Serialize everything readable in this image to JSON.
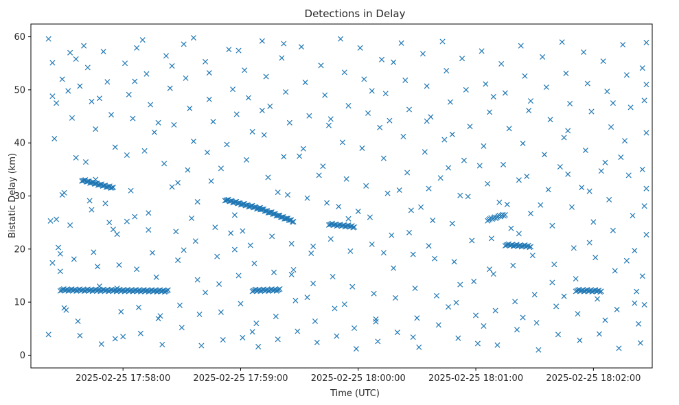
{
  "chart_data": {
    "type": "scatter",
    "title": "Detections in Delay",
    "xlabel": "Time (UTC)",
    "ylabel": "Bistatic Delay (km)",
    "marker": "x",
    "color": "#1f77b4",
    "x_unit": "seconds after 2025-02-25 17:57:00 UTC",
    "xlim": [
      13,
      330
    ],
    "ylim": [
      -2.4,
      62.4
    ],
    "x_ticks": [
      {
        "value": 60,
        "label": "2025-02-25 17:58:00"
      },
      {
        "value": 120,
        "label": "2025-02-25 17:59:00"
      },
      {
        "value": 180,
        "label": "2025-02-25 18:00:00"
      },
      {
        "value": 240,
        "label": "2025-02-25 18:01:00"
      },
      {
        "value": 300,
        "label": "2025-02-25 18:02:00"
      }
    ],
    "y_ticks": [
      {
        "value": 0,
        "label": "0"
      },
      {
        "value": 10,
        "label": "10"
      },
      {
        "value": 20,
        "label": "20"
      },
      {
        "value": 30,
        "label": "30"
      },
      {
        "value": 40,
        "label": "40"
      },
      {
        "value": 50,
        "label": "50"
      },
      {
        "value": 60,
        "label": "60"
      }
    ],
    "tracks": [
      {
        "x": [
          28,
          83
        ],
        "y": [
          12.3,
          12.1
        ]
      },
      {
        "x": [
          112,
          130
        ],
        "y": [
          29.3,
          27.6
        ]
      },
      {
        "x": [
          130,
          147
        ],
        "y": [
          27.6,
          25.2
        ]
      },
      {
        "x": [
          126,
          140
        ],
        "y": [
          12.2,
          12.3
        ]
      },
      {
        "x": [
          165,
          178
        ],
        "y": [
          24.7,
          24.2
        ]
      },
      {
        "x": [
          39,
          55
        ],
        "y": [
          33.0,
          31.5
        ]
      },
      {
        "x": [
          255,
          268
        ],
        "y": [
          20.8,
          20.5
        ]
      },
      {
        "x": [
          291,
          304
        ],
        "y": [
          12.2,
          12.1
        ]
      },
      {
        "x": [
          246,
          255
        ],
        "y": [
          25.5,
          26.5
        ]
      }
    ],
    "points": [
      [
        22,
        59.6
      ],
      [
        24,
        55.1
      ],
      [
        26,
        47.5
      ],
      [
        25,
        40.8
      ],
      [
        23,
        25.3
      ],
      [
        27,
        20.3
      ],
      [
        28,
        15.8
      ],
      [
        22,
        3.9
      ],
      [
        24,
        17.4
      ],
      [
        30,
        30.6
      ],
      [
        29,
        52.0
      ],
      [
        32,
        49.8
      ],
      [
        34,
        44.7
      ],
      [
        36,
        37.2
      ],
      [
        33,
        24.5
      ],
      [
        35,
        18.1
      ],
      [
        31,
        8.5
      ],
      [
        37,
        6.4
      ],
      [
        38,
        3.7
      ],
      [
        40,
        58.3
      ],
      [
        42,
        54.2
      ],
      [
        44,
        47.8
      ],
      [
        46,
        42.6
      ],
      [
        41,
        36.4
      ],
      [
        43,
        29.1
      ],
      [
        45,
        19.4
      ],
      [
        47,
        16.7
      ],
      [
        48,
        13.0
      ],
      [
        49,
        2.1
      ],
      [
        50,
        57.2
      ],
      [
        52,
        51.5
      ],
      [
        54,
        45.3
      ],
      [
        56,
        39.2
      ],
      [
        53,
        25.0
      ],
      [
        57,
        22.8
      ],
      [
        58,
        17.0
      ],
      [
        59,
        8.2
      ],
      [
        60,
        3.5
      ],
      [
        61,
        55.0
      ],
      [
        63,
        49.1
      ],
      [
        65,
        44.6
      ],
      [
        62,
        37.7
      ],
      [
        64,
        31.0
      ],
      [
        66,
        26.1
      ],
      [
        67,
        16.2
      ],
      [
        68,
        9.0
      ],
      [
        69,
        4.1
      ],
      [
        70,
        59.4
      ],
      [
        72,
        53.0
      ],
      [
        74,
        47.2
      ],
      [
        76,
        42.0
      ],
      [
        71,
        38.5
      ],
      [
        73,
        23.6
      ],
      [
        75,
        19.3
      ],
      [
        77,
        14.7
      ],
      [
        78,
        6.9
      ],
      [
        80,
        2.0
      ],
      [
        82,
        56.4
      ],
      [
        84,
        50.3
      ],
      [
        86,
        43.4
      ],
      [
        81,
        36.1
      ],
      [
        85,
        31.7
      ],
      [
        87,
        23.3
      ],
      [
        88,
        17.9
      ],
      [
        89,
        9.4
      ],
      [
        90,
        5.2
      ],
      [
        91,
        58.6
      ],
      [
        92,
        52.2
      ],
      [
        94,
        46.5
      ],
      [
        96,
        40.3
      ],
      [
        93,
        34.9
      ],
      [
        95,
        25.8
      ],
      [
        97,
        21.5
      ],
      [
        98,
        14.2
      ],
      [
        99,
        7.7
      ],
      [
        100,
        1.8
      ],
      [
        102,
        55.3
      ],
      [
        104,
        48.2
      ],
      [
        106,
        44.0
      ],
      [
        103,
        38.2
      ],
      [
        105,
        32.8
      ],
      [
        107,
        24.1
      ],
      [
        108,
        18.6
      ],
      [
        109,
        13.4
      ],
      [
        110,
        8.1
      ],
      [
        111,
        2.9
      ],
      [
        114,
        57.6
      ],
      [
        116,
        50.1
      ],
      [
        118,
        45.4
      ],
      [
        113,
        39.7
      ],
      [
        115,
        23.0
      ],
      [
        117,
        19.9
      ],
      [
        119,
        15.0
      ],
      [
        120,
        9.7
      ],
      [
        121,
        3.3
      ],
      [
        122,
        53.7
      ],
      [
        124,
        48.5
      ],
      [
        126,
        42.1
      ],
      [
        123,
        36.8
      ],
      [
        125,
        20.7
      ],
      [
        127,
        17.3
      ],
      [
        128,
        6.0
      ],
      [
        129,
        1.6
      ],
      [
        131,
        59.2
      ],
      [
        133,
        52.5
      ],
      [
        135,
        46.9
      ],
      [
        132,
        41.5
      ],
      [
        134,
        33.5
      ],
      [
        136,
        22.4
      ],
      [
        137,
        15.6
      ],
      [
        138,
        7.3
      ],
      [
        139,
        3.0
      ],
      [
        141,
        56.0
      ],
      [
        143,
        49.6
      ],
      [
        145,
        43.8
      ],
      [
        142,
        37.4
      ],
      [
        144,
        30.2
      ],
      [
        146,
        21.0
      ],
      [
        147,
        16.1
      ],
      [
        148,
        10.3
      ],
      [
        149,
        4.5
      ],
      [
        151,
        58.1
      ],
      [
        153,
        51.4
      ],
      [
        155,
        45.1
      ],
      [
        152,
        38.9
      ],
      [
        154,
        29.6
      ],
      [
        156,
        19.2
      ],
      [
        157,
        13.5
      ],
      [
        158,
        6.4
      ],
      [
        159,
        2.4
      ],
      [
        161,
        54.6
      ],
      [
        163,
        49.0
      ],
      [
        165,
        43.3
      ],
      [
        162,
        35.6
      ],
      [
        164,
        28.7
      ],
      [
        166,
        21.9
      ],
      [
        167,
        14.8
      ],
      [
        168,
        8.8
      ],
      [
        169,
        3.6
      ],
      [
        171,
        59.6
      ],
      [
        173,
        53.3
      ],
      [
        175,
        47.0
      ],
      [
        172,
        40.1
      ],
      [
        174,
        33.2
      ],
      [
        176,
        19.6
      ],
      [
        177,
        12.9
      ],
      [
        178,
        5.1
      ],
      [
        179,
        1.2
      ],
      [
        181,
        57.9
      ],
      [
        183,
        52.0
      ],
      [
        185,
        45.6
      ],
      [
        182,
        39.0
      ],
      [
        184,
        31.9
      ],
      [
        186,
        26.0
      ],
      [
        187,
        20.9
      ],
      [
        188,
        11.6
      ],
      [
        189,
        6.3
      ],
      [
        190,
        2.6
      ],
      [
        192,
        55.7
      ],
      [
        194,
        49.3
      ],
      [
        196,
        44.2
      ],
      [
        193,
        37.1
      ],
      [
        195,
        30.5
      ],
      [
        197,
        22.6
      ],
      [
        198,
        16.4
      ],
      [
        199,
        10.8
      ],
      [
        200,
        4.3
      ],
      [
        202,
        58.8
      ],
      [
        204,
        51.8
      ],
      [
        206,
        46.3
      ],
      [
        203,
        41.2
      ],
      [
        205,
        34.4
      ],
      [
        207,
        27.3
      ],
      [
        208,
        19.0
      ],
      [
        209,
        12.6
      ],
      [
        210,
        7.0
      ],
      [
        211,
        1.5
      ],
      [
        213,
        56.8
      ],
      [
        215,
        50.7
      ],
      [
        217,
        44.9
      ],
      [
        214,
        38.3
      ],
      [
        216,
        31.4
      ],
      [
        218,
        25.4
      ],
      [
        219,
        18.2
      ],
      [
        220,
        11.2
      ],
      [
        221,
        5.7
      ],
      [
        223,
        59.1
      ],
      [
        225,
        53.6
      ],
      [
        227,
        47.7
      ],
      [
        224,
        40.6
      ],
      [
        226,
        35.3
      ],
      [
        228,
        24.8
      ],
      [
        229,
        17.6
      ],
      [
        230,
        9.9
      ],
      [
        231,
        3.2
      ],
      [
        233,
        55.9
      ],
      [
        235,
        50.0
      ],
      [
        237,
        43.1
      ],
      [
        234,
        36.7
      ],
      [
        236,
        29.9
      ],
      [
        238,
        21.6
      ],
      [
        239,
        13.9
      ],
      [
        240,
        7.5
      ],
      [
        241,
        2.2
      ],
      [
        243,
        57.3
      ],
      [
        245,
        51.1
      ],
      [
        247,
        45.8
      ],
      [
        244,
        39.4
      ],
      [
        246,
        32.3
      ],
      [
        248,
        22.0
      ],
      [
        249,
        15.3
      ],
      [
        250,
        8.4
      ],
      [
        251,
        1.9
      ],
      [
        253,
        54.9
      ],
      [
        255,
        49.4
      ],
      [
        257,
        42.7
      ],
      [
        254,
        35.9
      ],
      [
        256,
        28.4
      ],
      [
        258,
        23.9
      ],
      [
        259,
        16.9
      ],
      [
        260,
        10.1
      ],
      [
        261,
        4.8
      ],
      [
        263,
        58.3
      ],
      [
        265,
        52.6
      ],
      [
        267,
        46.1
      ],
      [
        264,
        39.9
      ],
      [
        266,
        33.7
      ],
      [
        268,
        26.7
      ],
      [
        269,
        18.8
      ],
      [
        270,
        11.4
      ],
      [
        271,
        6.1
      ],
      [
        272,
        1.0
      ],
      [
        274,
        56.2
      ],
      [
        276,
        50.5
      ],
      [
        278,
        44.4
      ],
      [
        275,
        37.8
      ],
      [
        277,
        31.2
      ],
      [
        279,
        24.4
      ],
      [
        280,
        17.1
      ],
      [
        281,
        9.2
      ],
      [
        282,
        3.9
      ],
      [
        284,
        59.0
      ],
      [
        286,
        53.1
      ],
      [
        288,
        47.4
      ],
      [
        285,
        41.0
      ],
      [
        287,
        34.1
      ],
      [
        289,
        27.9
      ],
      [
        290,
        20.2
      ],
      [
        291,
        14.4
      ],
      [
        292,
        7.8
      ],
      [
        293,
        2.8
      ],
      [
        295,
        57.1
      ],
      [
        297,
        51.2
      ],
      [
        299,
        45.9
      ],
      [
        296,
        38.6
      ],
      [
        298,
        30.9
      ],
      [
        300,
        25.1
      ],
      [
        301,
        18.4
      ],
      [
        302,
        10.6
      ],
      [
        303,
        4.0
      ],
      [
        305,
        55.4
      ],
      [
        307,
        49.7
      ],
      [
        309,
        43.0
      ],
      [
        306,
        36.3
      ],
      [
        308,
        29.3
      ],
      [
        310,
        23.5
      ],
      [
        311,
        15.9
      ],
      [
        312,
        8.6
      ],
      [
        313,
        1.3
      ],
      [
        315,
        58.5
      ],
      [
        317,
        52.8
      ],
      [
        319,
        46.7
      ],
      [
        316,
        40.4
      ],
      [
        318,
        33.9
      ],
      [
        320,
        26.3
      ],
      [
        321,
        19.7
      ],
      [
        322,
        12.0
      ],
      [
        323,
        5.9
      ],
      [
        324,
        2.3
      ],
      [
        325,
        54.1
      ],
      [
        326,
        48.0
      ],
      [
        327,
        41.9
      ],
      [
        325,
        35.0
      ],
      [
        326,
        28.1
      ],
      [
        327,
        22.7
      ],
      [
        325,
        14.9
      ],
      [
        326,
        9.5
      ],
      [
        327,
        31.4
      ],
      [
        327,
        51.0
      ],
      [
        327,
        58.9
      ],
      [
        24,
        48.8
      ],
      [
        26,
        25.6
      ],
      [
        28,
        19.1
      ],
      [
        29,
        30.2
      ],
      [
        33,
        57.0
      ],
      [
        38,
        50.7
      ],
      [
        46,
        33.1
      ],
      [
        51,
        28.6
      ],
      [
        57,
        12.6
      ],
      [
        62,
        25.2
      ],
      [
        66,
        51.6
      ],
      [
        78,
        43.8
      ],
      [
        88,
        32.5
      ],
      [
        98,
        28.9
      ],
      [
        104,
        53.2
      ],
      [
        110,
        35.2
      ],
      [
        121,
        23.4
      ],
      [
        131,
        46.1
      ],
      [
        139,
        30.7
      ],
      [
        150,
        37.5
      ],
      [
        160,
        33.9
      ],
      [
        170,
        28.0
      ],
      [
        180,
        27.1
      ],
      [
        191,
        42.9
      ],
      [
        201,
        31.1
      ],
      [
        212,
        27.9
      ],
      [
        222,
        33.4
      ],
      [
        232,
        30.1
      ],
      [
        242,
        35.7
      ],
      [
        252,
        28.8
      ],
      [
        262,
        33.0
      ],
      [
        273,
        28.3
      ],
      [
        283,
        35.5
      ],
      [
        294,
        31.6
      ],
      [
        304,
        34.7
      ],
      [
        314,
        37.3
      ],
      [
        36,
        55.8
      ],
      [
        48,
        48.4
      ],
      [
        67,
        57.9
      ],
      [
        85,
        54.5
      ],
      [
        96,
        59.8
      ],
      [
        119,
        57.4
      ],
      [
        142,
        58.7
      ],
      [
        166,
        44.5
      ],
      [
        187,
        49.8
      ],
      [
        198,
        55.2
      ],
      [
        215,
        44.1
      ],
      [
        228,
        41.6
      ],
      [
        249,
        48.7
      ],
      [
        268,
        47.9
      ],
      [
        287,
        42.3
      ],
      [
        310,
        47.5
      ],
      [
        44,
        27.4
      ],
      [
        55,
        23.7
      ],
      [
        73,
        26.8
      ],
      [
        91,
        19.8
      ],
      [
        117,
        26.4
      ],
      [
        146,
        15.2
      ],
      [
        157,
        20.5
      ],
      [
        175,
        25.7
      ],
      [
        193,
        19.3
      ],
      [
        206,
        23.1
      ],
      [
        216,
        20.6
      ],
      [
        232,
        13.3
      ],
      [
        247,
        16.2
      ],
      [
        262,
        22.9
      ],
      [
        279,
        13.7
      ],
      [
        298,
        21.2
      ],
      [
        317,
        17.8
      ],
      [
        30,
        8.9
      ],
      [
        56,
        3.1
      ],
      [
        79,
        7.4
      ],
      [
        102,
        11.8
      ],
      [
        126,
        4.4
      ],
      [
        154,
        10.9
      ],
      [
        173,
        9.6
      ],
      [
        189,
        6.8
      ],
      [
        208,
        3.4
      ],
      [
        226,
        9.1
      ],
      [
        244,
        5.5
      ],
      [
        264,
        7.1
      ],
      [
        285,
        11.1
      ],
      [
        306,
        6.6
      ],
      [
        321,
        9.8
      ]
    ]
  }
}
